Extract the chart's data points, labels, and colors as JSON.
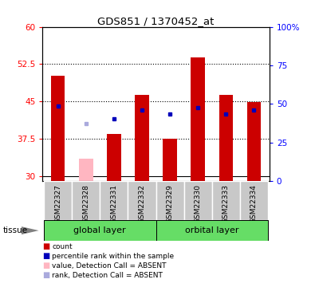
{
  "title": "GDS851 / 1370452_at",
  "samples": [
    "GSM22327",
    "GSM22328",
    "GSM22331",
    "GSM22332",
    "GSM22329",
    "GSM22330",
    "GSM22333",
    "GSM22334"
  ],
  "count_values": [
    50.2,
    null,
    38.5,
    46.3,
    37.5,
    53.8,
    46.3,
    44.8
  ],
  "count_absent_values": [
    null,
    33.5,
    null,
    null,
    null,
    null,
    null,
    null
  ],
  "rank_values": [
    44.0,
    null,
    41.5,
    43.2,
    42.5,
    43.8,
    42.5,
    43.2
  ],
  "rank_absent_values": [
    null,
    40.5,
    null,
    null,
    null,
    null,
    null,
    null
  ],
  "ylim_left": [
    29,
    60
  ],
  "ylim_right": [
    0,
    100
  ],
  "yticks_left": [
    30,
    37.5,
    45,
    52.5,
    60
  ],
  "ytick_labels_left": [
    "30",
    "37.5",
    "45",
    "52.5",
    "60"
  ],
  "yticks_right": [
    0,
    25,
    50,
    75,
    100
  ],
  "ytick_labels_right": [
    "0",
    "25",
    "50",
    "75",
    "100%"
  ],
  "bar_width": 0.5,
  "bar_bottom": 29,
  "count_color": "#CC0000",
  "count_absent_color": "#FFB6C1",
  "rank_color": "#0000BB",
  "rank_absent_color": "#AAAADD",
  "group_bg_color": "#C8C8C8",
  "tissue_bg_color": "#66DD66",
  "group_separator": 3,
  "group_ranges": [
    [
      0,
      3
    ],
    [
      4,
      7
    ]
  ],
  "group_names": [
    "global layer",
    "orbital layer"
  ],
  "legend_items": [
    {
      "color": "#CC0000",
      "label": "count"
    },
    {
      "color": "#0000BB",
      "label": "percentile rank within the sample"
    },
    {
      "color": "#FFB6C1",
      "label": "value, Detection Call = ABSENT"
    },
    {
      "color": "#AAAADD",
      "label": "rank, Detection Call = ABSENT"
    }
  ]
}
